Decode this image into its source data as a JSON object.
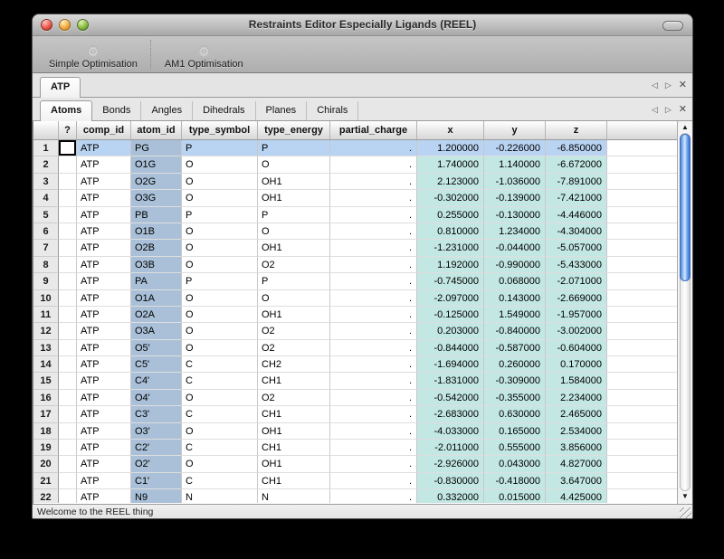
{
  "window": {
    "title": "Restraints Editor Especially Ligands (REEL)"
  },
  "toolbar": {
    "buttons": [
      {
        "label": "Simple Optimisation",
        "icon": "gear-icon",
        "icon_glyph": "⚙"
      },
      {
        "label": "AM1 Optimisation",
        "icon": "gear-icon",
        "icon_glyph": "⚙"
      }
    ]
  },
  "doc_tabs": {
    "tabs": [
      {
        "label": "ATP",
        "selected": true
      }
    ],
    "controls": {
      "prev_glyph": "◁",
      "next_glyph": "▷",
      "close_glyph": "✕"
    }
  },
  "section_tabs": {
    "tabs": [
      {
        "label": "Atoms",
        "selected": true
      },
      {
        "label": "Bonds",
        "selected": false
      },
      {
        "label": "Angles",
        "selected": false
      },
      {
        "label": "Dihedrals",
        "selected": false
      },
      {
        "label": "Planes",
        "selected": false
      },
      {
        "label": "Chirals",
        "selected": false
      }
    ],
    "controls": {
      "prev_glyph": "◁",
      "next_glyph": "▷",
      "close_glyph": "✕"
    }
  },
  "table": {
    "columns": [
      "",
      "?",
      "comp_id",
      "atom_id",
      "type_symbol",
      "type_energy",
      "partial_charge",
      "x",
      "y",
      "z"
    ],
    "rows": [
      {
        "num": 1,
        "comp_id": "ATP",
        "atom_id": "PG",
        "type_symbol": "P",
        "type_energy": "P",
        "partial_charge": ".",
        "x": "1.200000",
        "y": "-0.226000",
        "z": "-6.850000",
        "selected": true
      },
      {
        "num": 2,
        "comp_id": "ATP",
        "atom_id": "O1G",
        "type_symbol": "O",
        "type_energy": "O",
        "partial_charge": ".",
        "x": "1.740000",
        "y": "1.140000",
        "z": "-6.672000",
        "selected": false
      },
      {
        "num": 3,
        "comp_id": "ATP",
        "atom_id": "O2G",
        "type_symbol": "O",
        "type_energy": "OH1",
        "partial_charge": ".",
        "x": "2.123000",
        "y": "-1.036000",
        "z": "-7.891000",
        "selected": false
      },
      {
        "num": 4,
        "comp_id": "ATP",
        "atom_id": "O3G",
        "type_symbol": "O",
        "type_energy": "OH1",
        "partial_charge": ".",
        "x": "-0.302000",
        "y": "-0.139000",
        "z": "-7.421000",
        "selected": false
      },
      {
        "num": 5,
        "comp_id": "ATP",
        "atom_id": "PB",
        "type_symbol": "P",
        "type_energy": "P",
        "partial_charge": ".",
        "x": "0.255000",
        "y": "-0.130000",
        "z": "-4.446000",
        "selected": false
      },
      {
        "num": 6,
        "comp_id": "ATP",
        "atom_id": "O1B",
        "type_symbol": "O",
        "type_energy": "O",
        "partial_charge": ".",
        "x": "0.810000",
        "y": "1.234000",
        "z": "-4.304000",
        "selected": false
      },
      {
        "num": 7,
        "comp_id": "ATP",
        "atom_id": "O2B",
        "type_symbol": "O",
        "type_energy": "OH1",
        "partial_charge": ".",
        "x": "-1.231000",
        "y": "-0.044000",
        "z": "-5.057000",
        "selected": false
      },
      {
        "num": 8,
        "comp_id": "ATP",
        "atom_id": "O3B",
        "type_symbol": "O",
        "type_energy": "O2",
        "partial_charge": ".",
        "x": "1.192000",
        "y": "-0.990000",
        "z": "-5.433000",
        "selected": false
      },
      {
        "num": 9,
        "comp_id": "ATP",
        "atom_id": "PA",
        "type_symbol": "P",
        "type_energy": "P",
        "partial_charge": ".",
        "x": "-0.745000",
        "y": "0.068000",
        "z": "-2.071000",
        "selected": false
      },
      {
        "num": 10,
        "comp_id": "ATP",
        "atom_id": "O1A",
        "type_symbol": "O",
        "type_energy": "O",
        "partial_charge": ".",
        "x": "-2.097000",
        "y": "0.143000",
        "z": "-2.669000",
        "selected": false
      },
      {
        "num": 11,
        "comp_id": "ATP",
        "atom_id": "O2A",
        "type_symbol": "O",
        "type_energy": "OH1",
        "partial_charge": ".",
        "x": "-0.125000",
        "y": "1.549000",
        "z": "-1.957000",
        "selected": false
      },
      {
        "num": 12,
        "comp_id": "ATP",
        "atom_id": "O3A",
        "type_symbol": "O",
        "type_energy": "O2",
        "partial_charge": ".",
        "x": "0.203000",
        "y": "-0.840000",
        "z": "-3.002000",
        "selected": false
      },
      {
        "num": 13,
        "comp_id": "ATP",
        "atom_id": "O5'",
        "type_symbol": "O",
        "type_energy": "O2",
        "partial_charge": ".",
        "x": "-0.844000",
        "y": "-0.587000",
        "z": "-0.604000",
        "selected": false
      },
      {
        "num": 14,
        "comp_id": "ATP",
        "atom_id": "C5'",
        "type_symbol": "C",
        "type_energy": "CH2",
        "partial_charge": ".",
        "x": "-1.694000",
        "y": "0.260000",
        "z": "0.170000",
        "selected": false
      },
      {
        "num": 15,
        "comp_id": "ATP",
        "atom_id": "C4'",
        "type_symbol": "C",
        "type_energy": "CH1",
        "partial_charge": ".",
        "x": "-1.831000",
        "y": "-0.309000",
        "z": "1.584000",
        "selected": false
      },
      {
        "num": 16,
        "comp_id": "ATP",
        "atom_id": "O4'",
        "type_symbol": "O",
        "type_energy": "O2",
        "partial_charge": ".",
        "x": "-0.542000",
        "y": "-0.355000",
        "z": "2.234000",
        "selected": false
      },
      {
        "num": 17,
        "comp_id": "ATP",
        "atom_id": "C3'",
        "type_symbol": "C",
        "type_energy": "CH1",
        "partial_charge": ".",
        "x": "-2.683000",
        "y": "0.630000",
        "z": "2.465000",
        "selected": false
      },
      {
        "num": 18,
        "comp_id": "ATP",
        "atom_id": "O3'",
        "type_symbol": "O",
        "type_energy": "OH1",
        "partial_charge": ".",
        "x": "-4.033000",
        "y": "0.165000",
        "z": "2.534000",
        "selected": false
      },
      {
        "num": 19,
        "comp_id": "ATP",
        "atom_id": "C2'",
        "type_symbol": "C",
        "type_energy": "CH1",
        "partial_charge": ".",
        "x": "-2.011000",
        "y": "0.555000",
        "z": "3.856000",
        "selected": false
      },
      {
        "num": 20,
        "comp_id": "ATP",
        "atom_id": "O2'",
        "type_symbol": "O",
        "type_energy": "OH1",
        "partial_charge": ".",
        "x": "-2.926000",
        "y": "0.043000",
        "z": "4.827000",
        "selected": false
      },
      {
        "num": 21,
        "comp_id": "ATP",
        "atom_id": "C1'",
        "type_symbol": "C",
        "type_energy": "CH1",
        "partial_charge": ".",
        "x": "-0.830000",
        "y": "-0.418000",
        "z": "3.647000",
        "selected": false
      },
      {
        "num": 22,
        "comp_id": "ATP",
        "atom_id": "N9",
        "type_symbol": "N",
        "type_energy": "N",
        "partial_charge": ".",
        "x": "0.332000",
        "y": "0.015000",
        "z": "4.425000",
        "selected": false
      }
    ]
  },
  "scrollbar": {
    "up_glyph": "▲",
    "down_glyph": "▼"
  },
  "status_bar": {
    "message": "Welcome to the REEL thing"
  },
  "colors": {
    "selection": "#b9d3f2",
    "atom_id_column": "#a9c0d8",
    "coordinate_columns": "#c3e7e3",
    "scrollbar_thumb": "#4f8ee8"
  }
}
